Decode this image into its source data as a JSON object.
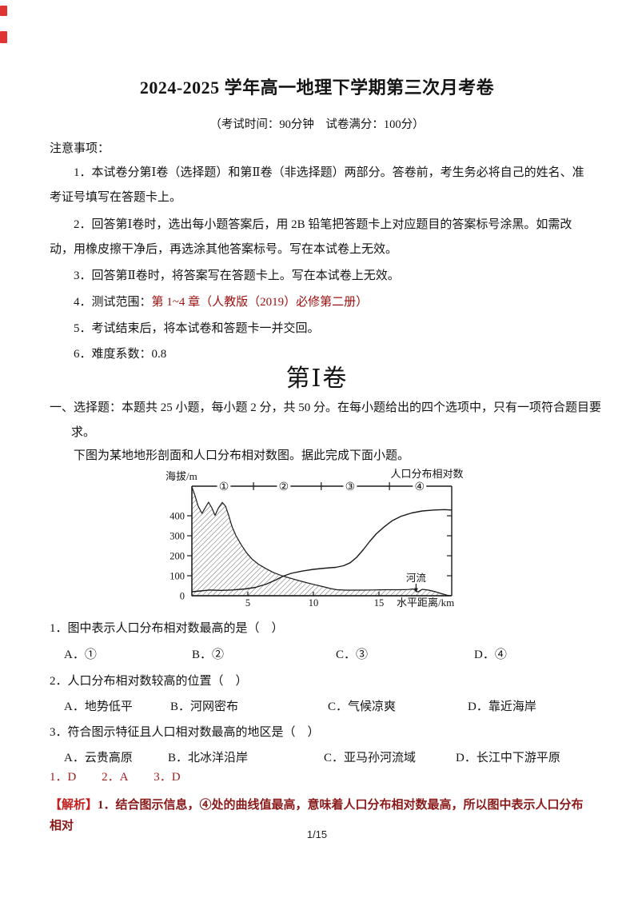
{
  "header": {
    "title": "2024-2025 学年高一地理下学期第三次月考卷",
    "subtitle": "（考试时间：90分钟　试卷满分：100分）"
  },
  "notice": {
    "heading": "注意事项：",
    "items": [
      {
        "text": "1．本试卷分第Ⅰ卷（选择题）和第Ⅱ卷（非选择题）两部分。答卷前，考生务必将自己的姓名、准考证号填写在答题卡上。"
      },
      {
        "text": "2．回答第Ⅰ卷时，选出每小题答案后，用 2B 铅笔把答题卡上对应题目的答案标号涂黑。如需改动，用橡皮擦干净后，再选涂其他答案标号。写在本试卷上无效。"
      },
      {
        "text": "3．回答第Ⅱ卷时，将答案写在答题卡上。写在本试卷上无效。"
      },
      {
        "prefix": "4．测试范围：",
        "highlight": "第 1~4 章（人教版（2019）必修第二册）"
      },
      {
        "text": "5．考试结束后，将本试卷和答题卡一并交回。"
      },
      {
        "text": "6．难度系数：0.8"
      }
    ]
  },
  "section1": {
    "heading": "第Ⅰ卷",
    "intro": "一、选择题：本题共 25 小题，每小题 2 分，共 50 分。在每小题给出的四个选项中，只有一项符合题目要求。",
    "stimulus": "下图为某地地形剖面和人口分布相对数图。据此完成下面小题。"
  },
  "questions": [
    {
      "stem": "1．图中表示人口分布相对数最高的是（　）",
      "options": [
        "A．①",
        "B．②",
        "C．③",
        "D．④"
      ]
    },
    {
      "stem": "2．人口分布相对数较高的位置（　）",
      "options": [
        "A．地势低平",
        "B．河网密布",
        "C．气候凉爽",
        "D．靠近海岸"
      ]
    },
    {
      "stem": "3．符合图示特征且人口相对数最高的地区是（　）",
      "options": [
        "A．云贵高原",
        "B．北冰洋沿岸",
        "C．亚马孙河流域",
        "D．长江中下游平原"
      ]
    }
  ],
  "answers": {
    "items": [
      "1．D",
      "2．A",
      "3．D"
    ]
  },
  "analysis": {
    "marker": "【解析】",
    "text": "1．结合图示信息，④处的曲线值最高，意味着人口分布相对数最高，所以图中表示人口分布相对"
  },
  "page": {
    "footer": "1/15"
  },
  "colors": {
    "highlight_red": "#9c0f0f",
    "answer_red": "#a02020",
    "analysis_red": "#8a1a1a"
  },
  "chart_data": {
    "type": "line",
    "left_axis_label": "海拔/m",
    "right_axis_label": "人口分布相对数",
    "xlabel": "水平距离/km",
    "river_label": "河流",
    "river_km": 17.95,
    "x_ticks": [
      5,
      10,
      15
    ],
    "y_ticks": [
      0,
      100,
      200,
      300,
      400
    ],
    "ylim": [
      0,
      548
    ],
    "xlim_km": [
      0.73,
      20.5
    ],
    "zones": [
      "①",
      "②",
      "③",
      "④"
    ],
    "zone_centers_km": [
      3.17,
      7.74,
      12.8,
      18.1
    ],
    "zone_dividers_km": [
      5.43,
      10.6,
      15.8
    ],
    "series": [
      {
        "name": "地形剖面",
        "style": "hatched-area",
        "points": [
          [
            0.73,
            545
          ],
          [
            0.95,
            505
          ],
          [
            1.2,
            450
          ],
          [
            1.5,
            412
          ],
          [
            1.75,
            440
          ],
          [
            2.0,
            468
          ],
          [
            2.25,
            440
          ],
          [
            2.5,
            402
          ],
          [
            2.75,
            438
          ],
          [
            3.05,
            467
          ],
          [
            3.3,
            448
          ],
          [
            3.55,
            400
          ],
          [
            3.8,
            345
          ],
          [
            4.1,
            300
          ],
          [
            4.5,
            255
          ],
          [
            4.9,
            215
          ],
          [
            5.3,
            185
          ],
          [
            5.8,
            158
          ],
          [
            6.4,
            135
          ],
          [
            7.0,
            115
          ],
          [
            7.6,
            100
          ],
          [
            8.4,
            85
          ],
          [
            9.2,
            70
          ],
          [
            10.0,
            57
          ],
          [
            10.7,
            46
          ],
          [
            11.3,
            36
          ],
          [
            11.8,
            30
          ],
          [
            12.5,
            28
          ],
          [
            13.5,
            28
          ],
          [
            14.5,
            29
          ],
          [
            15.5,
            30
          ],
          [
            16.5,
            30
          ],
          [
            17.2,
            31
          ],
          [
            17.6,
            34
          ],
          [
            17.95,
            19
          ],
          [
            18.3,
            32
          ],
          [
            18.8,
            28
          ],
          [
            19.3,
            20
          ],
          [
            19.8,
            10
          ],
          [
            20.2,
            3
          ],
          [
            20.5,
            0
          ]
        ]
      },
      {
        "name": "人口分布相对数",
        "style": "line",
        "points": [
          [
            0.73,
            20
          ],
          [
            1.4,
            24
          ],
          [
            2.1,
            29
          ],
          [
            2.9,
            27
          ],
          [
            3.8,
            29
          ],
          [
            4.8,
            34
          ],
          [
            5.6,
            42
          ],
          [
            6.4,
            58
          ],
          [
            7.1,
            78
          ],
          [
            7.7,
            98
          ],
          [
            8.3,
            112
          ],
          [
            9.1,
            123
          ],
          [
            10.0,
            132
          ],
          [
            10.9,
            138
          ],
          [
            11.7,
            142
          ],
          [
            12.3,
            150
          ],
          [
            12.8,
            165
          ],
          [
            13.3,
            192
          ],
          [
            13.8,
            230
          ],
          [
            14.3,
            272
          ],
          [
            14.8,
            310
          ],
          [
            15.4,
            345
          ],
          [
            16.0,
            375
          ],
          [
            16.7,
            398
          ],
          [
            17.5,
            414
          ],
          [
            18.3,
            424
          ],
          [
            19.2,
            429
          ],
          [
            20.0,
            431
          ],
          [
            20.5,
            429
          ]
        ]
      }
    ]
  }
}
